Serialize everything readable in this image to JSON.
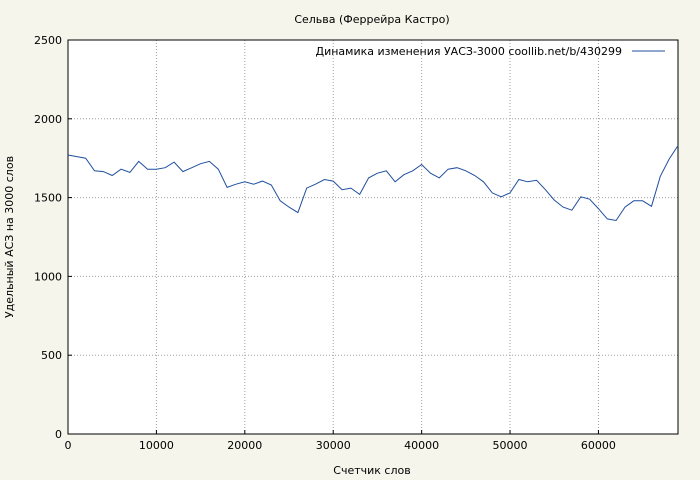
{
  "chart_data": {
    "type": "line",
    "title": "Сельва (Феррейра Кастро)",
    "xlabel": "Счетчик слов",
    "ylabel": "Удельный АСЗ на 3000 слов",
    "xlim": [
      0,
      69000
    ],
    "ylim": [
      0,
      2500
    ],
    "x_ticks": [
      0,
      10000,
      20000,
      30000,
      40000,
      50000,
      60000
    ],
    "y_ticks": [
      0,
      500,
      1000,
      1500,
      2000,
      2500
    ],
    "grid": true,
    "legend_position": "top-right",
    "series": [
      {
        "name": "Динамика изменения УАСЗ-3000  coollib.net/b/430299",
        "color": "#1f4f9e",
        "x": [
          0,
          1000,
          2000,
          3000,
          4000,
          5000,
          6000,
          7000,
          8000,
          9000,
          10000,
          11000,
          12000,
          13000,
          14000,
          15000,
          16000,
          17000,
          18000,
          19000,
          20000,
          21000,
          22000,
          23000,
          24000,
          25000,
          26000,
          27000,
          28000,
          29000,
          30000,
          31000,
          32000,
          33000,
          34000,
          35000,
          36000,
          37000,
          38000,
          39000,
          40000,
          41000,
          42000,
          43000,
          44000,
          45000,
          46000,
          47000,
          48000,
          49000,
          50000,
          51000,
          52000,
          53000,
          54000,
          55000,
          56000,
          57000,
          58000,
          59000,
          60000,
          61000,
          62000,
          63000,
          64000,
          65000,
          66000,
          67000,
          68000,
          69000
        ],
        "y": [
          1770,
          1760,
          1750,
          1670,
          1665,
          1640,
          1680,
          1660,
          1730,
          1680,
          1680,
          1690,
          1725,
          1665,
          1690,
          1715,
          1730,
          1680,
          1565,
          1585,
          1600,
          1585,
          1605,
          1580,
          1480,
          1440,
          1405,
          1560,
          1585,
          1615,
          1605,
          1550,
          1560,
          1520,
          1625,
          1655,
          1670,
          1600,
          1645,
          1670,
          1710,
          1655,
          1625,
          1680,
          1690,
          1670,
          1640,
          1600,
          1530,
          1505,
          1530,
          1615,
          1600,
          1610,
          1550,
          1485,
          1440,
          1420,
          1505,
          1490,
          1430,
          1365,
          1355,
          1440,
          1480,
          1480,
          1445,
          1635,
          1745,
          1830
        ]
      }
    ]
  }
}
